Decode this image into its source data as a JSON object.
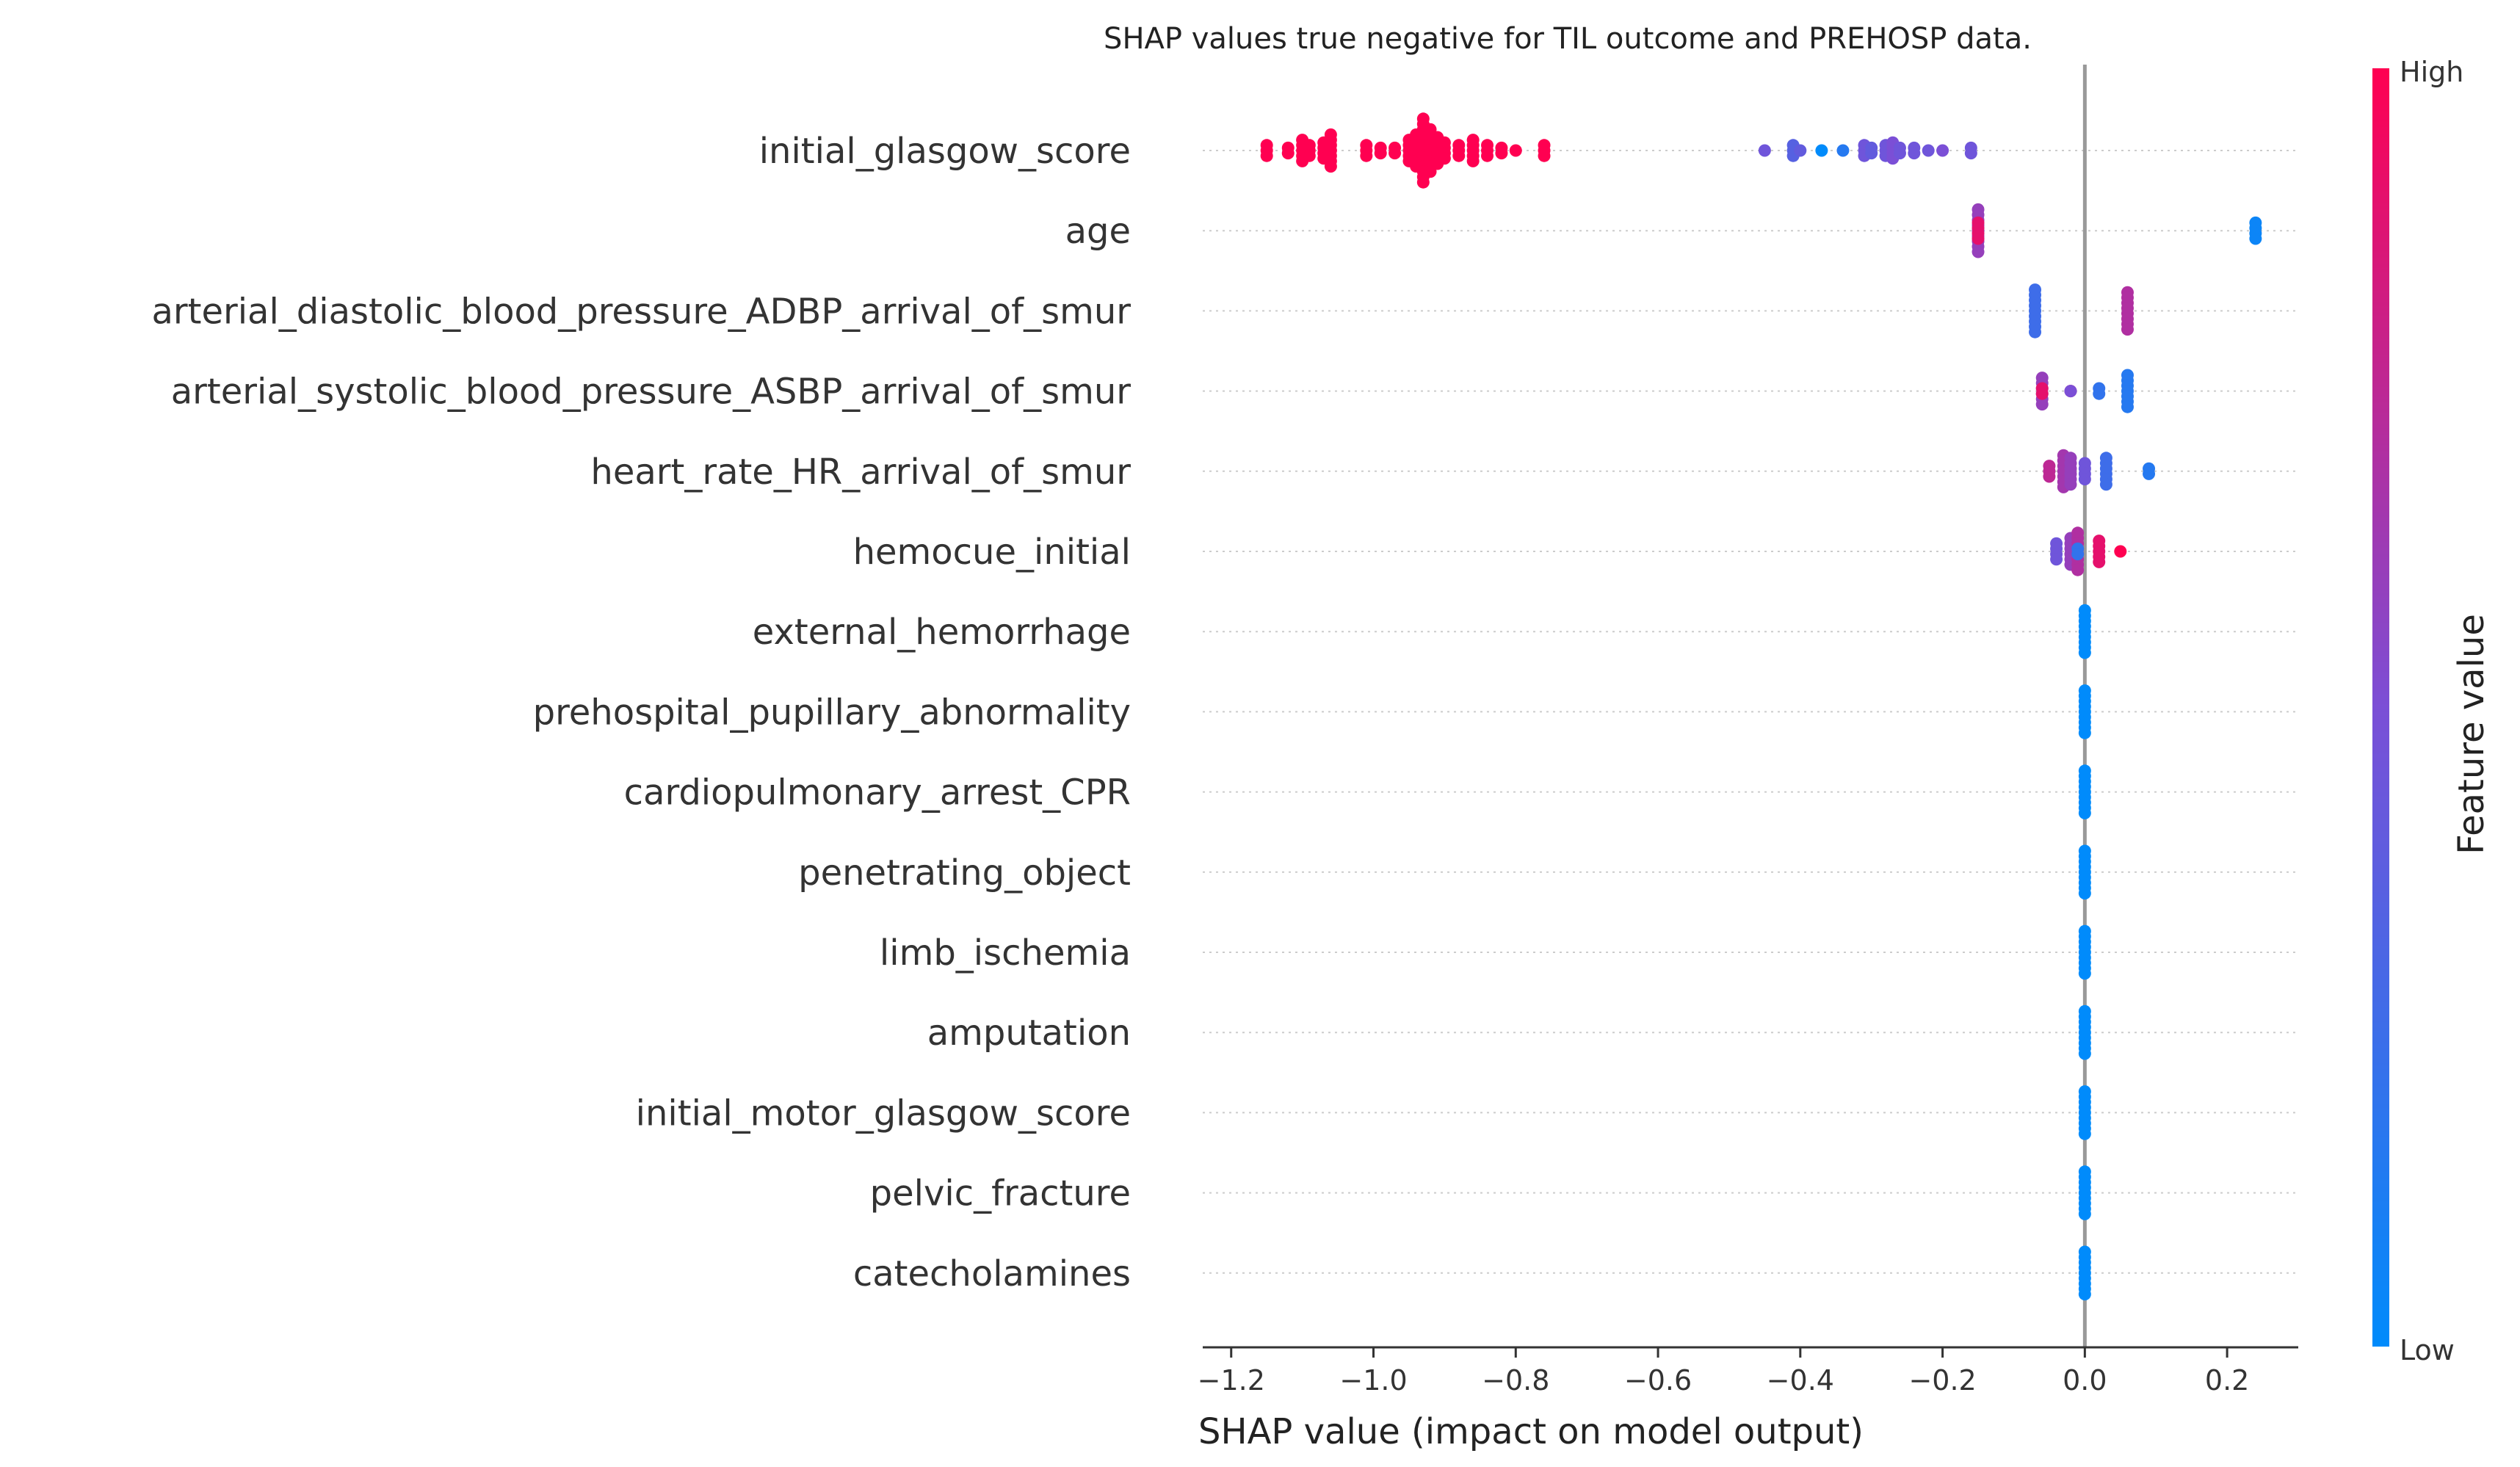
{
  "chart_data": {
    "type": "scatter",
    "subtype": "shap-beeswarm",
    "title": "SHAP values true negative for TIL outcome and PREHOSP data.",
    "xlabel": "SHAP value (impact on model output)",
    "ylabel": "",
    "xlim": [
      -1.24,
      0.3
    ],
    "xticks": [
      -1.2,
      -1.0,
      -0.8,
      -0.6,
      -0.4,
      -0.2,
      0.0,
      0.2
    ],
    "xtick_labels": [
      "−1.2",
      "−1.0",
      "−0.8",
      "−0.6",
      "−0.4",
      "−0.2",
      "0.0",
      "0.2"
    ],
    "grid": "dotted horizontal lines per feature",
    "legend": "colorbar right",
    "colorbar": {
      "title": "Feature value",
      "high_label": "High",
      "low_label": "Low",
      "high_color": "#ff0051",
      "low_color": "#008bfb"
    },
    "features": [
      {
        "name": "initial_glasgow_score",
        "points": [
          {
            "x": -1.15,
            "v": 1.0,
            "n": 3
          },
          {
            "x": -1.12,
            "v": 1.0,
            "n": 2
          },
          {
            "x": -1.1,
            "v": 1.0,
            "n": 5
          },
          {
            "x": -1.09,
            "v": 1.0,
            "n": 3
          },
          {
            "x": -1.07,
            "v": 1.0,
            "n": 4
          },
          {
            "x": -1.06,
            "v": 1.0,
            "n": 7
          },
          {
            "x": -1.01,
            "v": 1.0,
            "n": 3
          },
          {
            "x": -0.99,
            "v": 1.0,
            "n": 2
          },
          {
            "x": -0.97,
            "v": 1.0,
            "n": 2
          },
          {
            "x": -0.95,
            "v": 1.0,
            "n": 5
          },
          {
            "x": -0.94,
            "v": 1.0,
            "n": 7
          },
          {
            "x": -0.93,
            "v": 1.0,
            "n": 13
          },
          {
            "x": -0.92,
            "v": 1.0,
            "n": 9
          },
          {
            "x": -0.91,
            "v": 1.0,
            "n": 6
          },
          {
            "x": -0.9,
            "v": 1.0,
            "n": 4
          },
          {
            "x": -0.88,
            "v": 1.0,
            "n": 3
          },
          {
            "x": -0.86,
            "v": 1.0,
            "n": 5
          },
          {
            "x": -0.84,
            "v": 1.0,
            "n": 3
          },
          {
            "x": -0.82,
            "v": 1.0,
            "n": 2
          },
          {
            "x": -0.8,
            "v": 1.0,
            "n": 1
          },
          {
            "x": -0.76,
            "v": 1.0,
            "n": 3
          },
          {
            "x": -0.45,
            "v": 0.45,
            "n": 1
          },
          {
            "x": -0.41,
            "v": 0.35,
            "n": 3
          },
          {
            "x": -0.4,
            "v": 0.4,
            "n": 1
          },
          {
            "x": -0.37,
            "v": 0.0,
            "n": 1
          },
          {
            "x": -0.34,
            "v": 0.15,
            "n": 1
          },
          {
            "x": -0.31,
            "v": 0.45,
            "n": 3
          },
          {
            "x": -0.3,
            "v": 0.4,
            "n": 2
          },
          {
            "x": -0.28,
            "v": 0.45,
            "n": 3
          },
          {
            "x": -0.27,
            "v": 0.5,
            "n": 4
          },
          {
            "x": -0.26,
            "v": 0.45,
            "n": 2
          },
          {
            "x": -0.24,
            "v": 0.45,
            "n": 2
          },
          {
            "x": -0.22,
            "v": 0.45,
            "n": 1
          },
          {
            "x": -0.2,
            "v": 0.5,
            "n": 1
          },
          {
            "x": -0.16,
            "v": 0.45,
            "n": 2
          }
        ]
      },
      {
        "name": "age",
        "points": [
          {
            "x": -0.15,
            "v": 0.6,
            "n": 9
          },
          {
            "x": -0.15,
            "v": 0.9,
            "n": 4
          },
          {
            "x": 0.24,
            "v": 0.05,
            "n": 4
          }
        ]
      },
      {
        "name": "arterial_diastolic_blood_pressure_ADBP_arrival_of_smur",
        "points": [
          {
            "x": -0.07,
            "v": 0.25,
            "n": 9
          },
          {
            "x": 0.06,
            "v": 0.7,
            "n": 8
          }
        ]
      },
      {
        "name": "arterial_systolic_blood_pressure_ASBP_arrival_of_smur",
        "points": [
          {
            "x": -0.06,
            "v": 0.6,
            "n": 6
          },
          {
            "x": -0.06,
            "v": 0.9,
            "n": 2
          },
          {
            "x": -0.02,
            "v": 0.85,
            "n": 1
          },
          {
            "x": -0.02,
            "v": 0.5,
            "n": 1
          },
          {
            "x": 0.02,
            "v": 0.2,
            "n": 2
          },
          {
            "x": 0.06,
            "v": 0.15,
            "n": 7
          }
        ]
      },
      {
        "name": "heart_rate_HR_arrival_of_smur",
        "points": [
          {
            "x": -0.05,
            "v": 0.75,
            "n": 3
          },
          {
            "x": -0.03,
            "v": 0.65,
            "n": 7
          },
          {
            "x": -0.02,
            "v": 0.6,
            "n": 6
          },
          {
            "x": 0.0,
            "v": 0.45,
            "n": 4
          },
          {
            "x": 0.03,
            "v": 0.25,
            "n": 6
          },
          {
            "x": 0.09,
            "v": 0.15,
            "n": 2
          }
        ]
      },
      {
        "name": "hemocue_initial",
        "points": [
          {
            "x": -0.04,
            "v": 0.45,
            "n": 4
          },
          {
            "x": -0.02,
            "v": 0.6,
            "n": 6
          },
          {
            "x": -0.01,
            "v": 0.7,
            "n": 8
          },
          {
            "x": -0.01,
            "v": 0.2,
            "n": 2
          },
          {
            "x": 0.02,
            "v": 0.9,
            "n": 5
          },
          {
            "x": 0.05,
            "v": 1.0,
            "n": 1
          }
        ]
      },
      {
        "name": "external_hemorrhage",
        "points": [
          {
            "x": 0.0,
            "v": 0.0,
            "n": 9
          }
        ]
      },
      {
        "name": "prehospital_pupillary_abnormality",
        "points": [
          {
            "x": 0.0,
            "v": 0.0,
            "n": 9
          }
        ]
      },
      {
        "name": "cardiopulmonary_arrest_CPR",
        "points": [
          {
            "x": 0.0,
            "v": 0.0,
            "n": 9
          }
        ]
      },
      {
        "name": "penetrating_object",
        "points": [
          {
            "x": 0.0,
            "v": 0.0,
            "n": 9
          }
        ]
      },
      {
        "name": "limb_ischemia",
        "points": [
          {
            "x": 0.0,
            "v": 0.0,
            "n": 9
          }
        ]
      },
      {
        "name": "amputation",
        "points": [
          {
            "x": 0.0,
            "v": 0.0,
            "n": 9
          }
        ]
      },
      {
        "name": "initial_motor_glasgow_score",
        "points": [
          {
            "x": 0.0,
            "v": 0.0,
            "n": 9
          }
        ]
      },
      {
        "name": "pelvic_fracture",
        "points": [
          {
            "x": 0.0,
            "v": 0.0,
            "n": 9
          }
        ]
      },
      {
        "name": "catecholamines",
        "points": [
          {
            "x": 0.0,
            "v": 0.0,
            "n": 9
          }
        ]
      }
    ]
  }
}
